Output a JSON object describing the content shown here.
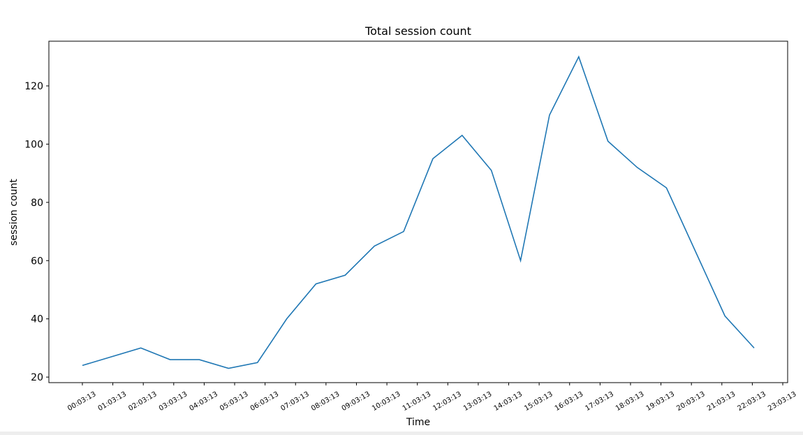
{
  "chart_data": {
    "type": "line",
    "title": "Total session count",
    "x_label": "Time",
    "y_label": "session count",
    "x": [
      0,
      0.96,
      1.92,
      2.88,
      3.84,
      4.8,
      5.75,
      6.71,
      7.67,
      8.63,
      9.59,
      10.55,
      11.51,
      12.47,
      13.43,
      14.39,
      15.34,
      16.3,
      17.26,
      18.22,
      19.18,
      20.14,
      21.1,
      22.06
    ],
    "series": [
      {
        "name": "session count",
        "color": "#1f77b4",
        "values": [
          24,
          27,
          30,
          26,
          26,
          23,
          25,
          40,
          52,
          55,
          65,
          70,
          95,
          103,
          91,
          60,
          110,
          130,
          101,
          92,
          85,
          63,
          41,
          30
        ]
      }
    ],
    "xlim": [
      -1.1,
      23.16
    ],
    "ylim": [
      18.1,
      135.35
    ],
    "xticks": [
      {
        "value": 0,
        "label": "00:03:13"
      },
      {
        "value": 1,
        "label": "01:03:13"
      },
      {
        "value": 2,
        "label": "02:03:13"
      },
      {
        "value": 3,
        "label": "03:03:13"
      },
      {
        "value": 4,
        "label": "04:03:13"
      },
      {
        "value": 5,
        "label": "05:03:13"
      },
      {
        "value": 6,
        "label": "06:03:13"
      },
      {
        "value": 7,
        "label": "07:03:13"
      },
      {
        "value": 8,
        "label": "08:03:13"
      },
      {
        "value": 9,
        "label": "09:03:13"
      },
      {
        "value": 10,
        "label": "10:03:13"
      },
      {
        "value": 11,
        "label": "11:03:13"
      },
      {
        "value": 12,
        "label": "12:03:13"
      },
      {
        "value": 13,
        "label": "13:03:13"
      },
      {
        "value": 14,
        "label": "14:03:13"
      },
      {
        "value": 15,
        "label": "15:03:13"
      },
      {
        "value": 16,
        "label": "16:03:13"
      },
      {
        "value": 17,
        "label": "17:03:13"
      },
      {
        "value": 18,
        "label": "18:03:13"
      },
      {
        "value": 19,
        "label": "19:03:13"
      },
      {
        "value": 20,
        "label": "20:03:13"
      },
      {
        "value": 21,
        "label": "21:03:13"
      },
      {
        "value": 22,
        "label": "22:03:13"
      },
      {
        "value": 23,
        "label": "23:03:13"
      }
    ],
    "yticks": [
      20,
      40,
      60,
      80,
      100,
      120
    ],
    "grid": false
  }
}
